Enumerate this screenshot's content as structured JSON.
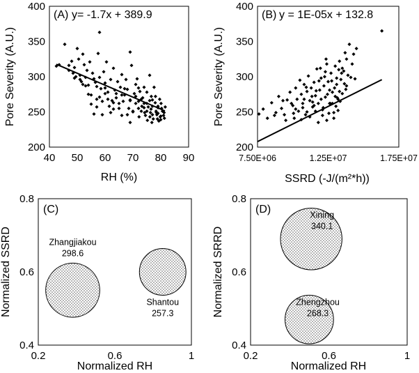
{
  "chart_data": [
    {
      "panel": "A",
      "type": "scatter",
      "label": "(A)",
      "equation": "y= -1.7x + 389.9",
      "xlabel": "RH (%)",
      "ylabel": "Pore Severity (A.U.)",
      "xlim": [
        40,
        90
      ],
      "ylim": [
        200,
        400
      ],
      "xticks": [
        "40",
        "50",
        "60",
        "70",
        "80",
        "90"
      ],
      "yticks": [
        "200",
        "250",
        "300",
        "350",
        "400"
      ],
      "trendline": {
        "slope": -1.7,
        "intercept": 389.9,
        "x_range": [
          42.5,
          81.5
        ]
      },
      "points": [
        [
          42.5,
          315
        ],
        [
          43.5,
          317
        ],
        [
          45.5,
          346
        ],
        [
          47,
          316
        ],
        [
          48,
          322
        ],
        [
          48.5,
          305
        ],
        [
          49,
          313
        ],
        [
          49.5,
          300
        ],
        [
          50,
          340
        ],
        [
          50.5,
          325
        ],
        [
          51,
          302
        ],
        [
          51.5,
          293
        ],
        [
          52,
          332
        ],
        [
          52.5,
          317
        ],
        [
          53,
          287
        ],
        [
          53.5,
          309
        ],
        [
          54,
          288
        ],
        [
          54.5,
          321
        ],
        [
          55,
          274
        ],
        [
          55.5,
          305
        ],
        [
          56,
          247
        ],
        [
          56.5,
          292
        ],
        [
          57,
          268
        ],
        [
          57.5,
          333
        ],
        [
          58,
          299
        ],
        [
          58.5,
          283
        ],
        [
          59,
          265
        ],
        [
          59.5,
          307
        ],
        [
          60,
          284
        ],
        [
          60.5,
          321
        ],
        [
          61,
          278
        ],
        [
          61.5,
          258
        ],
        [
          62,
          296
        ],
        [
          62.5,
          266
        ],
        [
          63,
          312
        ],
        [
          63.5,
          281
        ],
        [
          64,
          270
        ],
        [
          64.5,
          293
        ],
        [
          65,
          255
        ],
        [
          65.5,
          285
        ],
        [
          66,
          303
        ],
        [
          66.5,
          265
        ],
        [
          67,
          274
        ],
        [
          67.5,
          296
        ],
        [
          68,
          282
        ],
        [
          68.5,
          255
        ],
        [
          69,
          266
        ],
        [
          69.5,
          316
        ],
        [
          70,
          250
        ],
        [
          70.5,
          276
        ],
        [
          71,
          289
        ],
        [
          71.5,
          297
        ],
        [
          72,
          265
        ],
        [
          72.5,
          279
        ],
        [
          73,
          251
        ],
        [
          73.5,
          270
        ],
        [
          74,
          262
        ],
        [
          74.5,
          245
        ],
        [
          75,
          278
        ],
        [
          75.5,
          257
        ],
        [
          76,
          266
        ],
        [
          76.3,
          249
        ],
        [
          76.6,
          272
        ],
        [
          77,
          258
        ],
        [
          77.3,
          240
        ],
        [
          77.6,
          285
        ],
        [
          78,
          263
        ],
        [
          78.3,
          251
        ],
        [
          78.6,
          246
        ],
        [
          79,
          256
        ],
        [
          79.3,
          237
        ],
        [
          79.6,
          268
        ],
        [
          80,
          244
        ],
        [
          80.3,
          255
        ],
        [
          80.6,
          251
        ],
        [
          81,
          245
        ],
        [
          81.3,
          241
        ],
        [
          81.6,
          257
        ],
        [
          75.2,
          238
        ],
        [
          74.2,
          249
        ],
        [
          73.2,
          258
        ],
        [
          72.2,
          243
        ],
        [
          76.8,
          235
        ],
        [
          78.8,
          240
        ],
        [
          58,
          363
        ],
        [
          63,
          254
        ],
        [
          55,
          261
        ],
        [
          66,
          274
        ],
        [
          69,
          267
        ],
        [
          71,
          272
        ],
        [
          74,
          285
        ],
        [
          72,
          284
        ],
        [
          68,
          246
        ],
        [
          61,
          268
        ],
        [
          53,
          299
        ],
        [
          57,
          286
        ],
        [
          77,
          246
        ],
        [
          79,
          258
        ],
        [
          75,
          262
        ],
        [
          70,
          251
        ],
        [
          76.1,
          243
        ],
        [
          78.1,
          272
        ],
        [
          80.1,
          262
        ],
        [
          56,
          297
        ],
        [
          60,
          276
        ],
        [
          64,
          276
        ],
        [
          67,
          283
        ],
        [
          73,
          268
        ],
        [
          47,
          309
        ],
        [
          51,
          296
        ],
        [
          59,
          246
        ],
        [
          62,
          249
        ],
        [
          65,
          262
        ],
        [
          69,
          235
        ],
        [
          72,
          255
        ],
        [
          75,
          251
        ],
        [
          77,
          267
        ],
        [
          79,
          248
        ],
        [
          80,
          239
        ],
        [
          52,
          289
        ],
        [
          54,
          275
        ],
        [
          58,
          271
        ],
        [
          66,
          245
        ],
        [
          71,
          262
        ],
        [
          74,
          256
        ],
        [
          76.5,
          254
        ],
        [
          78.4,
          249
        ],
        [
          79.8,
          243
        ],
        [
          81.2,
          249
        ],
        [
          69,
          335
        ],
        [
          76,
          302
        ],
        [
          63,
          263
        ],
        [
          57,
          257
        ],
        [
          49,
          298
        ],
        [
          60,
          291
        ]
      ]
    },
    {
      "panel": "B",
      "type": "scatter",
      "label": "(B)",
      "equation": "y = 1E-05x + 132.8",
      "xlabel": "SSRD (-J/(m²*h))",
      "ylabel": "Pore Severity (A.U.)",
      "xlim": [
        7500000,
        17500000
      ],
      "ylim": [
        200,
        400
      ],
      "xticks": [
        "7.50E+06",
        "1.25E+07",
        "1.75E+07"
      ],
      "yticks": [
        "200",
        "250",
        "300",
        "350",
        "400"
      ],
      "trendline": {
        "slope": 1e-05,
        "intercept": 132.8,
        "x_range": [
          7500000,
          16300000
        ]
      },
      "points": [
        [
          7600000,
          247
        ],
        [
          7900000,
          254
        ],
        [
          8200000,
          241
        ],
        [
          8500000,
          263
        ],
        [
          8800000,
          249
        ],
        [
          9000000,
          272
        ],
        [
          9200000,
          255
        ],
        [
          9400000,
          246
        ],
        [
          9600000,
          267
        ],
        [
          9800000,
          278
        ],
        [
          10000000,
          259
        ],
        [
          10100000,
          241
        ],
        [
          10200000,
          284
        ],
        [
          10300000,
          268
        ],
        [
          10400000,
          251
        ],
        [
          10500000,
          295
        ],
        [
          10600000,
          275
        ],
        [
          10700000,
          262
        ],
        [
          10800000,
          289
        ],
        [
          10900000,
          246
        ],
        [
          11000000,
          279
        ],
        [
          11100000,
          301
        ],
        [
          11200000,
          266
        ],
        [
          11300000,
          284
        ],
        [
          11400000,
          257
        ],
        [
          11500000,
          292
        ],
        [
          11600000,
          273
        ],
        [
          11700000,
          311
        ],
        [
          11800000,
          262
        ],
        [
          11900000,
          281
        ],
        [
          12000000,
          298
        ],
        [
          12100000,
          253
        ],
        [
          12200000,
          287
        ],
        [
          12300000,
          271
        ],
        [
          12400000,
          318
        ],
        [
          12500000,
          293
        ],
        [
          12600000,
          262
        ],
        [
          12700000,
          305
        ],
        [
          12800000,
          278
        ],
        [
          12900000,
          249
        ],
        [
          13000000,
          315
        ],
        [
          13100000,
          289
        ],
        [
          13200000,
          268
        ],
        [
          13300000,
          322
        ],
        [
          13400000,
          296
        ],
        [
          13500000,
          276
        ],
        [
          13600000,
          308
        ],
        [
          13700000,
          334
        ],
        [
          13800000,
          287
        ],
        [
          13900000,
          302
        ],
        [
          14000000,
          346
        ],
        [
          14200000,
          318
        ],
        [
          14400000,
          297
        ],
        [
          16300000,
          365
        ],
        [
          12400000,
          238
        ],
        [
          11800000,
          235
        ],
        [
          11200000,
          243
        ],
        [
          10600000,
          239
        ],
        [
          12900000,
          241
        ],
        [
          13200000,
          252
        ],
        [
          9500000,
          238
        ],
        [
          11000000,
          250
        ],
        [
          12000000,
          268
        ],
        [
          12600000,
          281
        ],
        [
          13100000,
          298
        ],
        [
          13500000,
          312
        ],
        [
          13800000,
          325
        ],
        [
          12300000,
          307
        ],
        [
          11500000,
          259
        ],
        [
          10800000,
          268
        ],
        [
          12800000,
          262
        ],
        [
          13300000,
          279
        ],
        [
          12100000,
          245
        ],
        [
          11600000,
          251
        ],
        [
          10200000,
          254
        ],
        [
          9900000,
          262
        ],
        [
          12450000,
          275
        ],
        [
          13050000,
          258
        ],
        [
          13650000,
          290
        ],
        [
          12750000,
          294
        ],
        [
          11350000,
          272
        ],
        [
          10950000,
          285
        ],
        [
          12250000,
          300
        ],
        [
          11850000,
          294
        ],
        [
          13450000,
          305
        ],
        [
          12550000,
          248
        ],
        [
          11650000,
          280
        ],
        [
          13150000,
          270
        ],
        [
          12950000,
          284
        ],
        [
          12650000,
          262
        ],
        [
          8700000,
          245
        ],
        [
          9300000,
          266
        ],
        [
          10050000,
          248
        ],
        [
          10700000,
          256
        ],
        [
          11400000,
          264
        ],
        [
          12150000,
          256
        ],
        [
          13000000,
          272
        ],
        [
          13350000,
          265
        ],
        [
          13750000,
          282
        ],
        [
          14100000,
          299
        ],
        [
          14300000,
          332
        ],
        [
          14500000,
          340
        ],
        [
          12350000,
          325
        ],
        [
          11950000,
          312
        ],
        [
          13250000,
          310
        ]
      ]
    },
    {
      "panel": "C",
      "type": "bubble",
      "label": "(C)",
      "xlabel": "Normalized RH",
      "ylabel": "Normalized SSRD",
      "xlim": [
        0.2,
        1
      ],
      "ylim": [
        0.4,
        0.8
      ],
      "xticks": [
        "0.2",
        "0.6",
        "1"
      ],
      "yticks": [
        "0.4",
        "0.6",
        "0.8"
      ],
      "bubbles": [
        {
          "name": "Zhangjiakou",
          "value": "298.6",
          "x": 0.38,
          "y": 0.55,
          "size": 298.6
        },
        {
          "name": "Shantou",
          "value": "257.3",
          "x": 0.85,
          "y": 0.6,
          "size": 257.3
        }
      ]
    },
    {
      "panel": "D",
      "type": "bubble",
      "label": "(D)",
      "xlabel": "Normalized RH",
      "ylabel": "Normalized SRRD",
      "xlim": [
        0.2,
        1
      ],
      "ylim": [
        0.4,
        0.8
      ],
      "xticks": [
        "0.2",
        "0.6",
        "1"
      ],
      "yticks": [
        "0.4",
        "0.6",
        "0.8"
      ],
      "bubbles": [
        {
          "name": "Xining",
          "value": "340.1",
          "x": 0.51,
          "y": 0.69,
          "size": 340.1
        },
        {
          "name": "Zhengzhou",
          "value": "268.3",
          "x": 0.5,
          "y": 0.47,
          "size": 268.3
        }
      ]
    }
  ]
}
